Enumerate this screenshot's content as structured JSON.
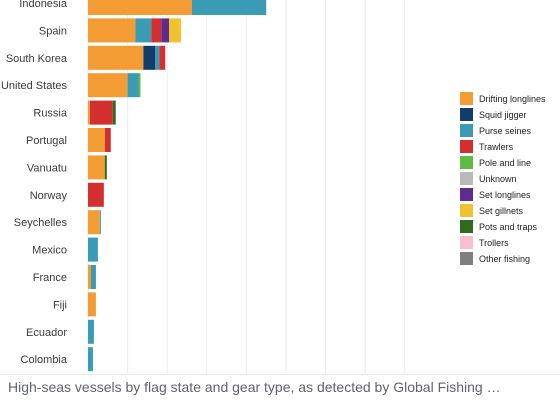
{
  "caption": "High-seas vessels by flag state and gear type, as detected by Global Fishing …",
  "chart_data": {
    "type": "bar",
    "orientation": "horizontal",
    "stacked": true,
    "title": "",
    "xlabel": "",
    "ylabel": "",
    "grid": true,
    "legend_position": "right",
    "categories": [
      "Indonesia",
      "Spain",
      "South Korea",
      "United States",
      "Russia",
      "Portugal",
      "Vanuatu",
      "Norway",
      "Seychelles",
      "Mexico",
      "France",
      "Fiji",
      "Ecuador",
      "Colombia"
    ],
    "series": [
      {
        "name": "Drifting longlines",
        "color": "#F39C33",
        "values": [
          105,
          48,
          56,
          40,
          2,
          17,
          17,
          0,
          12,
          0,
          3,
          8,
          0,
          0
        ]
      },
      {
        "name": "Squid jigger",
        "color": "#123C69",
        "values": [
          0,
          0,
          12,
          0,
          0,
          0,
          0,
          0,
          0,
          0,
          0,
          0,
          0,
          0
        ]
      },
      {
        "name": "Purse seines",
        "color": "#3A9BB5",
        "values": [
          75,
          16,
          4,
          11,
          0,
          0,
          0,
          0,
          1,
          10,
          5,
          0,
          6,
          5
        ]
      },
      {
        "name": "Trawlers",
        "color": "#D32F2F",
        "values": [
          0,
          10,
          6,
          0,
          23,
          6,
          0,
          16,
          0,
          0,
          0,
          0,
          0,
          0
        ]
      },
      {
        "name": "Pole and line",
        "color": "#5DBB46",
        "values": [
          0,
          0,
          0,
          2,
          0,
          0,
          0,
          0,
          0,
          0,
          0,
          0,
          0,
          0
        ]
      },
      {
        "name": "Unknown",
        "color": "#B9B9B9",
        "values": [
          0,
          0,
          0,
          0,
          0,
          0,
          0,
          0,
          0,
          0,
          0,
          0,
          0,
          0
        ]
      },
      {
        "name": "Set longlines",
        "color": "#5E2C8E",
        "values": [
          0,
          8,
          0,
          0,
          0,
          0,
          0,
          0,
          0,
          0,
          0,
          0,
          0,
          0
        ]
      },
      {
        "name": "Set gillnets",
        "color": "#F2C12E",
        "values": [
          0,
          12,
          0,
          0,
          0,
          0,
          0,
          0,
          0,
          0,
          0,
          0,
          0,
          0
        ]
      },
      {
        "name": "Pots and traps",
        "color": "#2E6B1F",
        "values": [
          0,
          0,
          0,
          0,
          3,
          0,
          2,
          0,
          0,
          0,
          0,
          0,
          0,
          0
        ]
      },
      {
        "name": "Trollers",
        "color": "#F7BFD0",
        "values": [
          0,
          0,
          0,
          0,
          0,
          0,
          0,
          0,
          0,
          0,
          0,
          0,
          0,
          0
        ]
      },
      {
        "name": "Other fishing",
        "color": "#7F7F7F",
        "values": [
          0,
          0,
          0,
          0,
          0,
          0,
          0,
          0,
          0,
          0,
          0,
          0,
          0,
          0
        ]
      }
    ],
    "xlim": [
      0,
      360
    ]
  }
}
